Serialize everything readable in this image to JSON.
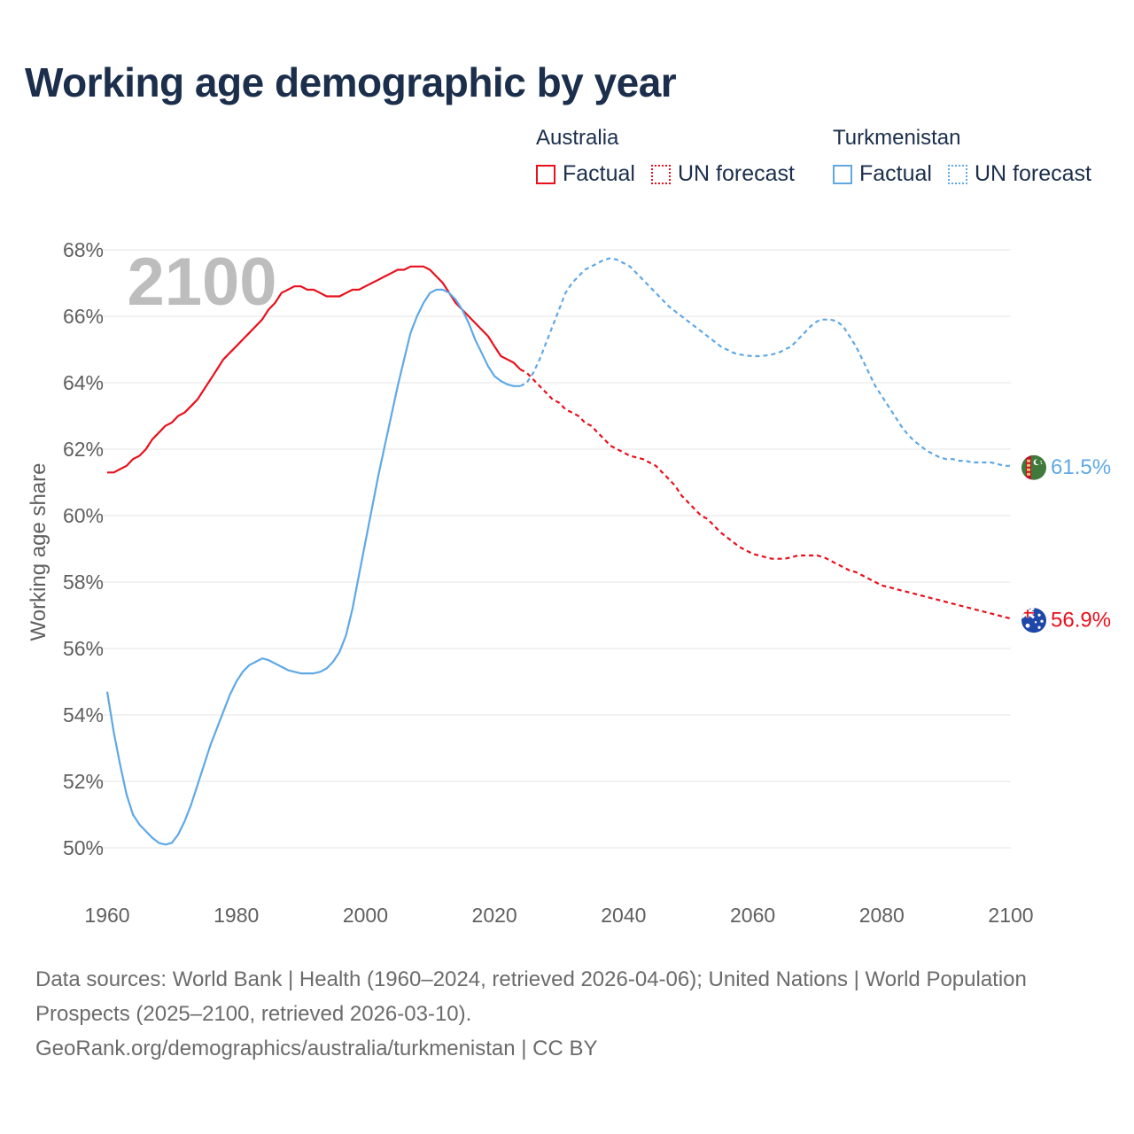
{
  "title": "Working age demographic by year",
  "legend": {
    "groups": [
      {
        "country": "Australia",
        "color": "#e8101c",
        "factual_label": "Factual",
        "forecast_label": "UN forecast"
      },
      {
        "country": "Turkmenistan",
        "color": "#5fa8e6",
        "factual_label": "Factual",
        "forecast_label": "UN forecast"
      }
    ]
  },
  "footer": {
    "sources": "Data sources: World Bank | Health (1960–2024, retrieved 2026-04-06); United Nations | World Population Prospects (2025–2100, retrieved 2026-03-10).",
    "url": "GeoRank.org/demographics/australia/turkmenistan | CC BY"
  },
  "chart_data": {
    "type": "line",
    "year_watermark": "2100",
    "ylabel": "Working age share",
    "xlabel": "",
    "xlim": [
      1960,
      2100
    ],
    "ylim": [
      49,
      68.5
    ],
    "x_ticks": [
      1960,
      1980,
      2000,
      2020,
      2040,
      2060,
      2080,
      2100
    ],
    "x_tick_labels": [
      "1960",
      "1980",
      "2000",
      "2020",
      "2040",
      "2060",
      "2080",
      "2100"
    ],
    "y_ticks": [
      50,
      52,
      54,
      56,
      58,
      60,
      62,
      64,
      66,
      68
    ],
    "y_tick_labels": [
      "50%",
      "52%",
      "54%",
      "56%",
      "58%",
      "60%",
      "62%",
      "64%",
      "66%",
      "68%"
    ],
    "grid": true,
    "series": [
      {
        "name": "Australia",
        "color": "#e8101c",
        "end_label": "56.9%",
        "end_value": 56.9,
        "factual": [
          [
            1960,
            61.3
          ],
          [
            1961,
            61.3
          ],
          [
            1962,
            61.4
          ],
          [
            1963,
            61.5
          ],
          [
            1964,
            61.7
          ],
          [
            1965,
            61.8
          ],
          [
            1966,
            62.0
          ],
          [
            1967,
            62.3
          ],
          [
            1968,
            62.5
          ],
          [
            1969,
            62.7
          ],
          [
            1970,
            62.8
          ],
          [
            1971,
            63.0
          ],
          [
            1972,
            63.1
          ],
          [
            1973,
            63.3
          ],
          [
            1974,
            63.5
          ],
          [
            1975,
            63.8
          ],
          [
            1976,
            64.1
          ],
          [
            1977,
            64.4
          ],
          [
            1978,
            64.7
          ],
          [
            1979,
            64.9
          ],
          [
            1980,
            65.1
          ],
          [
            1981,
            65.3
          ],
          [
            1982,
            65.5
          ],
          [
            1983,
            65.7
          ],
          [
            1984,
            65.9
          ],
          [
            1985,
            66.2
          ],
          [
            1986,
            66.4
          ],
          [
            1987,
            66.7
          ],
          [
            1988,
            66.8
          ],
          [
            1989,
            66.9
          ],
          [
            1990,
            66.9
          ],
          [
            1991,
            66.8
          ],
          [
            1992,
            66.8
          ],
          [
            1993,
            66.7
          ],
          [
            1994,
            66.6
          ],
          [
            1995,
            66.6
          ],
          [
            1996,
            66.6
          ],
          [
            1997,
            66.7
          ],
          [
            1998,
            66.8
          ],
          [
            1999,
            66.8
          ],
          [
            2000,
            66.9
          ],
          [
            2001,
            67.0
          ],
          [
            2002,
            67.1
          ],
          [
            2003,
            67.2
          ],
          [
            2004,
            67.3
          ],
          [
            2005,
            67.4
          ],
          [
            2006,
            67.4
          ],
          [
            2007,
            67.5
          ],
          [
            2008,
            67.5
          ],
          [
            2009,
            67.5
          ],
          [
            2010,
            67.4
          ],
          [
            2011,
            67.2
          ],
          [
            2012,
            67.0
          ],
          [
            2013,
            66.7
          ],
          [
            2014,
            66.4
          ],
          [
            2015,
            66.2
          ],
          [
            2016,
            66.0
          ],
          [
            2017,
            65.8
          ],
          [
            2018,
            65.6
          ],
          [
            2019,
            65.4
          ],
          [
            2020,
            65.1
          ],
          [
            2021,
            64.8
          ],
          [
            2022,
            64.7
          ],
          [
            2023,
            64.6
          ],
          [
            2024,
            64.4
          ]
        ],
        "forecast": [
          [
            2024,
            64.4
          ],
          [
            2025,
            64.3
          ],
          [
            2026,
            64.1
          ],
          [
            2027,
            63.9
          ],
          [
            2028,
            63.7
          ],
          [
            2029,
            63.5
          ],
          [
            2030,
            63.4
          ],
          [
            2031,
            63.2
          ],
          [
            2032,
            63.1
          ],
          [
            2033,
            63.0
          ],
          [
            2034,
            62.8
          ],
          [
            2035,
            62.7
          ],
          [
            2036,
            62.5
          ],
          [
            2037,
            62.3
          ],
          [
            2038,
            62.1
          ],
          [
            2039,
            62.0
          ],
          [
            2040,
            61.9
          ],
          [
            2041,
            61.8
          ],
          [
            2042,
            61.75
          ],
          [
            2043,
            61.7
          ],
          [
            2044,
            61.6
          ],
          [
            2045,
            61.5
          ],
          [
            2046,
            61.3
          ],
          [
            2047,
            61.1
          ],
          [
            2048,
            60.9
          ],
          [
            2049,
            60.6
          ],
          [
            2050,
            60.4
          ],
          [
            2051,
            60.2
          ],
          [
            2052,
            60.0
          ],
          [
            2053,
            59.9
          ],
          [
            2054,
            59.7
          ],
          [
            2055,
            59.5
          ],
          [
            2056,
            59.35
          ],
          [
            2057,
            59.2
          ],
          [
            2058,
            59.05
          ],
          [
            2059,
            58.95
          ],
          [
            2060,
            58.85
          ],
          [
            2061,
            58.8
          ],
          [
            2062,
            58.75
          ],
          [
            2063,
            58.7
          ],
          [
            2064,
            58.7
          ],
          [
            2065,
            58.7
          ],
          [
            2066,
            58.75
          ],
          [
            2067,
            58.8
          ],
          [
            2068,
            58.8
          ],
          [
            2069,
            58.8
          ],
          [
            2070,
            58.8
          ],
          [
            2071,
            58.75
          ],
          [
            2072,
            58.65
          ],
          [
            2073,
            58.55
          ],
          [
            2074,
            58.45
          ],
          [
            2075,
            58.35
          ],
          [
            2076,
            58.3
          ],
          [
            2077,
            58.2
          ],
          [
            2078,
            58.1
          ],
          [
            2079,
            58.0
          ],
          [
            2080,
            57.9
          ],
          [
            2081,
            57.85
          ],
          [
            2082,
            57.8
          ],
          [
            2083,
            57.75
          ],
          [
            2084,
            57.7
          ],
          [
            2085,
            57.65
          ],
          [
            2086,
            57.6
          ],
          [
            2087,
            57.55
          ],
          [
            2088,
            57.5
          ],
          [
            2089,
            57.45
          ],
          [
            2090,
            57.4
          ],
          [
            2091,
            57.35
          ],
          [
            2092,
            57.3
          ],
          [
            2093,
            57.25
          ],
          [
            2094,
            57.2
          ],
          [
            2095,
            57.15
          ],
          [
            2096,
            57.1
          ],
          [
            2097,
            57.05
          ],
          [
            2098,
            57.0
          ],
          [
            2099,
            56.95
          ],
          [
            2100,
            56.9
          ]
        ]
      },
      {
        "name": "Turkmenistan",
        "color": "#5fa8e6",
        "end_label": "61.5%",
        "end_value": 61.5,
        "factual": [
          [
            1960,
            54.7
          ],
          [
            1961,
            53.5
          ],
          [
            1962,
            52.5
          ],
          [
            1963,
            51.6
          ],
          [
            1964,
            51.0
          ],
          [
            1965,
            50.7
          ],
          [
            1966,
            50.5
          ],
          [
            1967,
            50.3
          ],
          [
            1968,
            50.15
          ],
          [
            1969,
            50.1
          ],
          [
            1970,
            50.15
          ],
          [
            1971,
            50.4
          ],
          [
            1972,
            50.8
          ],
          [
            1973,
            51.3
          ],
          [
            1974,
            51.9
          ],
          [
            1975,
            52.5
          ],
          [
            1976,
            53.1
          ],
          [
            1977,
            53.6
          ],
          [
            1978,
            54.1
          ],
          [
            1979,
            54.6
          ],
          [
            1980,
            55.0
          ],
          [
            1981,
            55.3
          ],
          [
            1982,
            55.5
          ],
          [
            1983,
            55.6
          ],
          [
            1984,
            55.7
          ],
          [
            1985,
            55.65
          ],
          [
            1986,
            55.55
          ],
          [
            1987,
            55.45
          ],
          [
            1988,
            55.35
          ],
          [
            1989,
            55.3
          ],
          [
            1990,
            55.25
          ],
          [
            1991,
            55.25
          ],
          [
            1992,
            55.25
          ],
          [
            1993,
            55.3
          ],
          [
            1994,
            55.4
          ],
          [
            1995,
            55.6
          ],
          [
            1996,
            55.9
          ],
          [
            1997,
            56.4
          ],
          [
            1998,
            57.2
          ],
          [
            1999,
            58.2
          ],
          [
            2000,
            59.2
          ],
          [
            2001,
            60.2
          ],
          [
            2002,
            61.2
          ],
          [
            2003,
            62.1
          ],
          [
            2004,
            63.0
          ],
          [
            2005,
            63.9
          ],
          [
            2006,
            64.7
          ],
          [
            2007,
            65.5
          ],
          [
            2008,
            66.0
          ],
          [
            2009,
            66.4
          ],
          [
            2010,
            66.7
          ],
          [
            2011,
            66.8
          ],
          [
            2012,
            66.8
          ],
          [
            2013,
            66.7
          ],
          [
            2014,
            66.5
          ],
          [
            2015,
            66.2
          ],
          [
            2016,
            65.8
          ],
          [
            2017,
            65.3
          ],
          [
            2018,
            64.9
          ],
          [
            2019,
            64.5
          ],
          [
            2020,
            64.2
          ],
          [
            2021,
            64.05
          ],
          [
            2022,
            63.95
          ],
          [
            2023,
            63.9
          ],
          [
            2024,
            63.9
          ]
        ],
        "forecast": [
          [
            2024,
            63.9
          ],
          [
            2025,
            64.0
          ],
          [
            2026,
            64.3
          ],
          [
            2027,
            64.7
          ],
          [
            2028,
            65.2
          ],
          [
            2029,
            65.7
          ],
          [
            2030,
            66.2
          ],
          [
            2031,
            66.7
          ],
          [
            2032,
            67.0
          ],
          [
            2033,
            67.2
          ],
          [
            2034,
            67.4
          ],
          [
            2035,
            67.5
          ],
          [
            2036,
            67.6
          ],
          [
            2037,
            67.7
          ],
          [
            2038,
            67.75
          ],
          [
            2039,
            67.7
          ],
          [
            2040,
            67.6
          ],
          [
            2041,
            67.5
          ],
          [
            2042,
            67.3
          ],
          [
            2043,
            67.1
          ],
          [
            2044,
            66.9
          ],
          [
            2045,
            66.7
          ],
          [
            2046,
            66.5
          ],
          [
            2047,
            66.3
          ],
          [
            2048,
            66.15
          ],
          [
            2049,
            66.0
          ],
          [
            2050,
            65.85
          ],
          [
            2051,
            65.7
          ],
          [
            2052,
            65.55
          ],
          [
            2053,
            65.4
          ],
          [
            2054,
            65.25
          ],
          [
            2055,
            65.1
          ],
          [
            2056,
            65.0
          ],
          [
            2057,
            64.9
          ],
          [
            2058,
            64.85
          ],
          [
            2059,
            64.82
          ],
          [
            2060,
            64.8
          ],
          [
            2061,
            64.8
          ],
          [
            2062,
            64.82
          ],
          [
            2063,
            64.85
          ],
          [
            2064,
            64.9
          ],
          [
            2065,
            65.0
          ],
          [
            2066,
            65.1
          ],
          [
            2067,
            65.3
          ],
          [
            2068,
            65.5
          ],
          [
            2069,
            65.7
          ],
          [
            2070,
            65.85
          ],
          [
            2071,
            65.9
          ],
          [
            2072,
            65.9
          ],
          [
            2073,
            65.85
          ],
          [
            2074,
            65.7
          ],
          [
            2075,
            65.4
          ],
          [
            2076,
            65.1
          ],
          [
            2077,
            64.7
          ],
          [
            2078,
            64.3
          ],
          [
            2079,
            63.9
          ],
          [
            2080,
            63.6
          ],
          [
            2081,
            63.3
          ],
          [
            2082,
            63.0
          ],
          [
            2083,
            62.7
          ],
          [
            2084,
            62.45
          ],
          [
            2085,
            62.25
          ],
          [
            2086,
            62.1
          ],
          [
            2087,
            61.95
          ],
          [
            2088,
            61.85
          ],
          [
            2089,
            61.75
          ],
          [
            2090,
            61.7
          ],
          [
            2091,
            61.7
          ],
          [
            2092,
            61.65
          ],
          [
            2093,
            61.65
          ],
          [
            2094,
            61.6
          ],
          [
            2095,
            61.6
          ],
          [
            2096,
            61.6
          ],
          [
            2097,
            61.6
          ],
          [
            2098,
            61.55
          ],
          [
            2099,
            61.5
          ],
          [
            2100,
            61.5
          ]
        ]
      }
    ]
  }
}
